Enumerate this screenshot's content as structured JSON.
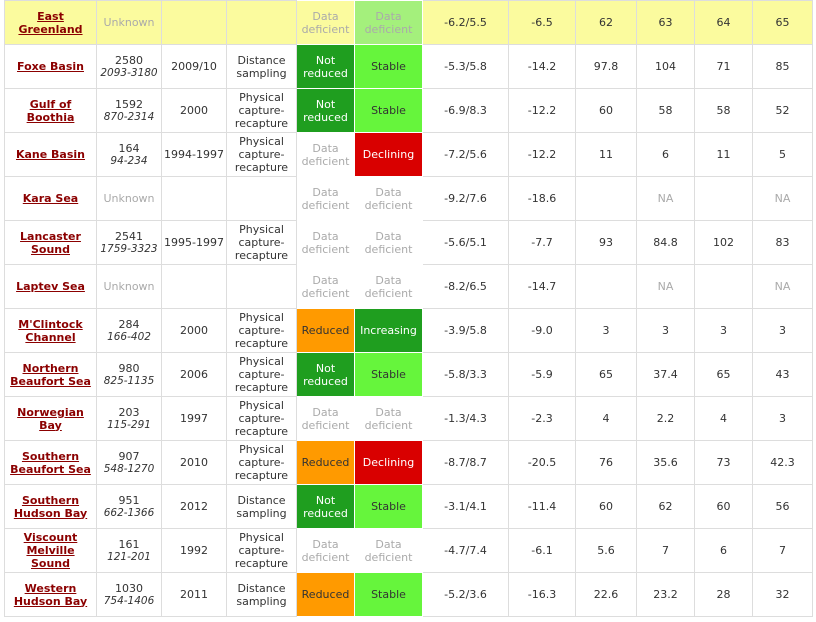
{
  "table": {
    "rows": [
      {
        "highlight": "#fbfb9e",
        "name": "East Greenland",
        "estimate": "Unknown",
        "status": {
          "text": "Data deficient"
        },
        "trend": {
          "text": "Data deficient",
          "bg": "#a4f07c"
        },
        "c1": "-6.2/5.5",
        "c2": "-6.5",
        "c3": "62",
        "c4": "63",
        "c5": "64",
        "c6": "65"
      },
      {
        "name": "Foxe Basin",
        "estimate": "2580",
        "range": "2093-3180",
        "year": "2009/10",
        "method": "Distance sampling",
        "status": {
          "text": "Not reduced",
          "bg": "#1f9e1f",
          "fg": "#ffffff"
        },
        "trend": {
          "text": "Stable",
          "bg": "#66f53c",
          "fg": "#333333"
        },
        "c1": "-5.3/5.8",
        "c2": "-14.2",
        "c3": "97.8",
        "c4": "104",
        "c5": "71",
        "c6": "85"
      },
      {
        "name": "Gulf of Boothia",
        "estimate": "1592",
        "range": "870-2314",
        "year": "2000",
        "method": "Physical capture-recapture",
        "status": {
          "text": "Not reduced",
          "bg": "#1f9e1f",
          "fg": "#ffffff"
        },
        "trend": {
          "text": "Stable",
          "bg": "#66f53c",
          "fg": "#333333"
        },
        "c1": "-6.9/8.3",
        "c2": "-12.2",
        "c3": "60",
        "c4": "58",
        "c5": "58",
        "c6": "52"
      },
      {
        "name": "Kane Basin",
        "estimate": "164",
        "range": "94-234",
        "year": "1994-1997",
        "method": "Physical capture-recapture",
        "status": {
          "text": "Data deficient"
        },
        "trend": {
          "text": "Declining",
          "bg": "#d90000",
          "fg": "#ffffff"
        },
        "c1": "-7.2/5.6",
        "c2": "-12.2",
        "c3": "11",
        "c4": "6",
        "c5": "11",
        "c6": "5"
      },
      {
        "name": "Kara Sea",
        "estimate": "Unknown",
        "status": {
          "text": "Data deficient"
        },
        "trend": {
          "text": "Data deficient"
        },
        "c1": "-9.2/7.6",
        "c2": "-18.6",
        "c4": "NA",
        "c6": "NA"
      },
      {
        "name": "Lancaster Sound",
        "estimate": "2541",
        "range": "1759-3323",
        "year": "1995-1997",
        "method": "Physical capture-recapture",
        "status": {
          "text": "Data deficient"
        },
        "trend": {
          "text": "Data deficient"
        },
        "c1": "-5.6/5.1",
        "c2": "-7.7",
        "c3": "93",
        "c4": "84.8",
        "c5": "102",
        "c6": "83"
      },
      {
        "name": "Laptev Sea",
        "estimate": "Unknown",
        "status": {
          "text": "Data deficient"
        },
        "trend": {
          "text": "Data deficient"
        },
        "c1": "-8.2/6.5",
        "c2": "-14.7",
        "c4": "NA",
        "c6": "NA"
      },
      {
        "name": "M'Clintock Channel",
        "estimate": "284",
        "range": "166-402",
        "year": "2000",
        "method": "Physical capture-recapture",
        "status": {
          "text": "Reduced",
          "bg": "#ff9a00",
          "fg": "#333333"
        },
        "trend": {
          "text": "Increasing",
          "bg": "#1f9e1f",
          "fg": "#ffffff"
        },
        "c1": "-3.9/5.8",
        "c2": "-9.0",
        "c3": "3",
        "c4": "3",
        "c5": "3",
        "c6": "3"
      },
      {
        "name": "Northern Beaufort Sea",
        "estimate": "980",
        "range": "825-1135",
        "year": "2006",
        "method": "Physical capture-recapture",
        "status": {
          "text": "Not reduced",
          "bg": "#1f9e1f",
          "fg": "#ffffff"
        },
        "trend": {
          "text": "Stable",
          "bg": "#66f53c",
          "fg": "#333333"
        },
        "c1": "-5.8/3.3",
        "c2": "-5.9",
        "c3": "65",
        "c4": "37.4",
        "c5": "65",
        "c6": "43"
      },
      {
        "name": "Norwegian Bay",
        "estimate": "203",
        "range": "115-291",
        "year": "1997",
        "method": "Physical capture-recapture",
        "status": {
          "text": "Data deficient"
        },
        "trend": {
          "text": "Data deficient"
        },
        "c1": "-1.3/4.3",
        "c2": "-2.3",
        "c3": "4",
        "c4": "2.2",
        "c5": "4",
        "c6": "3"
      },
      {
        "name": "Southern Beaufort Sea",
        "estimate": "907",
        "range": "548-1270",
        "year": "2010",
        "method": "Physical capture-recapture",
        "status": {
          "text": "Reduced",
          "bg": "#ff9a00",
          "fg": "#333333"
        },
        "trend": {
          "text": "Declining",
          "bg": "#d90000",
          "fg": "#ffffff"
        },
        "c1": "-8.7/8.7",
        "c2": "-20.5",
        "c3": "76",
        "c4": "35.6",
        "c5": "73",
        "c6": "42.3"
      },
      {
        "name": "Southern Hudson Bay",
        "estimate": "951",
        "range": "662-1366",
        "year": "2012",
        "method": "Distance sampling",
        "status": {
          "text": "Not reduced",
          "bg": "#1f9e1f",
          "fg": "#ffffff"
        },
        "trend": {
          "text": "Stable",
          "bg": "#66f53c",
          "fg": "#333333"
        },
        "c1": "-3.1/4.1",
        "c2": "-11.4",
        "c3": "60",
        "c4": "62",
        "c5": "60",
        "c6": "56"
      },
      {
        "name": "Viscount Melville Sound",
        "estimate": "161",
        "range": "121-201",
        "year": "1992",
        "method": "Physical capture-recapture",
        "status": {
          "text": "Data deficient"
        },
        "trend": {
          "text": "Data deficient"
        },
        "c1": "-4.7/7.4",
        "c2": "-6.1",
        "c3": "5.6",
        "c4": "7",
        "c5": "6",
        "c6": "7"
      },
      {
        "name": "Western Hudson Bay",
        "estimate": "1030",
        "range": "754-1406",
        "year": "2011",
        "method": "Distance sampling",
        "status": {
          "text": "Reduced",
          "bg": "#ff9a00",
          "fg": "#333333"
        },
        "trend": {
          "text": "Stable",
          "bg": "#66f53c",
          "fg": "#333333"
        },
        "c1": "-5.2/3.6",
        "c2": "-16.3",
        "c3": "22.6",
        "c4": "23.2",
        "c5": "28",
        "c6": "32"
      }
    ]
  }
}
